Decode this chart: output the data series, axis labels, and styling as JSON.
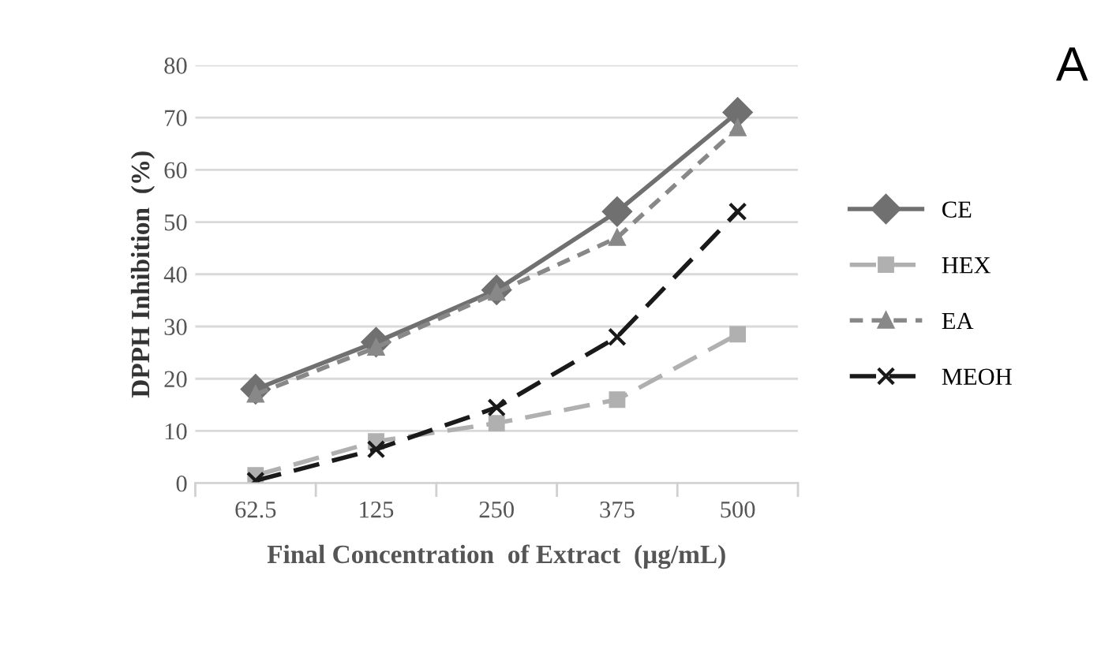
{
  "chart_data": {
    "type": "line",
    "xlabel": "Final Concentration  of Extract  (µg/mL)",
    "ylabel": "DPPH Inhibition  (%)",
    "categories": [
      "62.5",
      "125",
      "250",
      "375",
      "500"
    ],
    "series": [
      {
        "name": "CE",
        "color": "#707070",
        "values": [
          18,
          27,
          37,
          52,
          71
        ],
        "marker": "diamond",
        "line_style": "solid"
      },
      {
        "name": "HEX",
        "color": "#b0b0b0",
        "values": [
          1.5,
          8,
          11.5,
          16,
          28.5
        ],
        "marker": "square",
        "line_style": "dashed"
      },
      {
        "name": "EA",
        "color": "#888888",
        "values": [
          17,
          26,
          36.5,
          47,
          68
        ],
        "marker": "triangle",
        "line_style": "dotted"
      },
      {
        "name": "MEOH",
        "color": "#1a1a1a",
        "values": [
          0.5,
          6.5,
          14.5,
          28,
          52
        ],
        "marker": "cross",
        "line_style": "dashed"
      }
    ],
    "ylim": [
      0,
      80
    ],
    "yticks": [
      0,
      10,
      20,
      30,
      40,
      50,
      60,
      70,
      80
    ],
    "grid": "y",
    "legend": "right",
    "annotations": [
      "A"
    ]
  }
}
